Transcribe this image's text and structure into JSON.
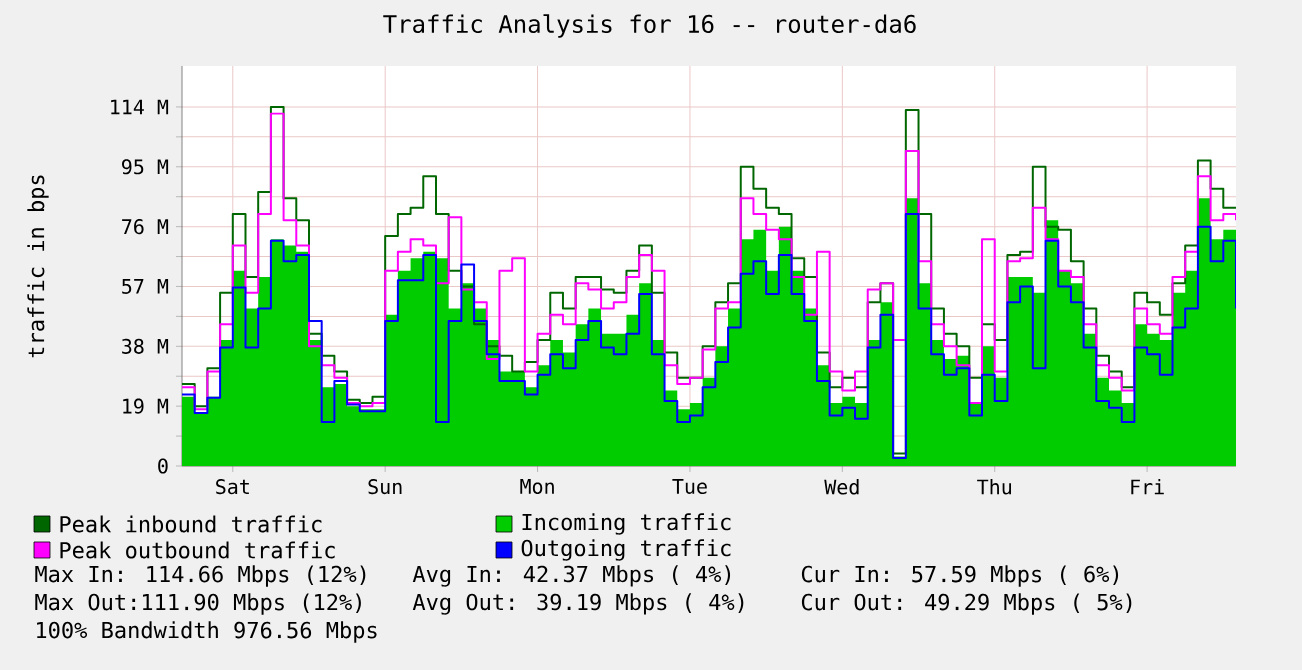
{
  "chart_data": {
    "type": "step",
    "title": "Traffic Analysis for 16 -- router-da6",
    "ylabel": "traffic in bps",
    "ylim": [
      0,
      127
    ],
    "categories": [
      null,
      null,
      null,
      null,
      "Sat",
      null,
      null,
      null,
      null,
      null,
      null,
      null,
      null,
      null,
      null,
      null,
      "Sun",
      null,
      null,
      null,
      null,
      null,
      null,
      null,
      null,
      null,
      null,
      null,
      "Mon",
      null,
      null,
      null,
      null,
      null,
      null,
      null,
      null,
      null,
      null,
      null,
      "Tue",
      null,
      null,
      null,
      null,
      null,
      null,
      null,
      null,
      null,
      null,
      null,
      "Wed",
      null,
      null,
      null,
      null,
      null,
      null,
      null,
      null,
      null,
      null,
      null,
      "Thu",
      null,
      null,
      null,
      null,
      null,
      null,
      null,
      null,
      null,
      null,
      null,
      "Fri",
      null,
      null,
      null,
      null,
      null,
      null,
      null
    ],
    "yticks": [
      {
        "value": 0,
        "label": "0"
      },
      {
        "value": 9.5,
        "label": null
      },
      {
        "value": 19,
        "label": "19 M"
      },
      {
        "value": 28.5,
        "label": null
      },
      {
        "value": 38,
        "label": "38 M"
      },
      {
        "value": 47.5,
        "label": null
      },
      {
        "value": 57,
        "label": "57 M"
      },
      {
        "value": 66.5,
        "label": null
      },
      {
        "value": 76,
        "label": "76 M"
      },
      {
        "value": 85.5,
        "label": null
      },
      {
        "value": 95,
        "label": "95 M"
      },
      {
        "value": 104.5,
        "label": null
      },
      {
        "value": 114,
        "label": "114 M"
      }
    ],
    "series": [
      {
        "name": "Peak inbound traffic",
        "color": "#006600",
        "values": [
          26,
          19,
          31,
          55,
          80,
          60,
          87,
          114,
          85,
          78,
          42,
          35,
          30,
          21,
          20,
          22,
          73,
          80,
          82,
          92,
          80,
          62,
          57,
          45,
          38,
          35,
          30,
          33,
          40,
          55,
          50,
          60,
          60,
          56,
          55,
          62,
          70,
          55,
          36,
          28,
          28,
          38,
          52,
          58,
          95,
          88,
          82,
          80,
          66,
          60,
          36,
          25,
          28,
          25,
          52,
          58,
          4,
          113,
          80,
          50,
          42,
          38,
          28,
          45,
          40,
          67,
          68,
          95,
          76,
          75,
          65,
          50,
          35,
          30,
          25,
          55,
          52,
          48,
          58,
          70,
          97,
          88,
          82,
          82
        ]
      },
      {
        "name": "Incoming traffic",
        "type": "area",
        "color": "#00cc00",
        "values": [
          22,
          17,
          22,
          40,
          62,
          50,
          60,
          72,
          70,
          68,
          40,
          25,
          26,
          19,
          18,
          18,
          48,
          62,
          66,
          68,
          66,
          50,
          58,
          50,
          40,
          30,
          30,
          25,
          32,
          40,
          36,
          45,
          50,
          42,
          42,
          48,
          58,
          40,
          24,
          18,
          20,
          28,
          38,
          50,
          72,
          75,
          62,
          76,
          62,
          50,
          32,
          20,
          22,
          20,
          40,
          52,
          3,
          85,
          58,
          40,
          34,
          35,
          20,
          38,
          28,
          60,
          60,
          55,
          78,
          62,
          58,
          42,
          28,
          24,
          20,
          45,
          42,
          40,
          55,
          62,
          85,
          72,
          75,
          76
        ]
      },
      {
        "name": "Peak outbound traffic",
        "color": "#ff00ff",
        "values": [
          25,
          18,
          30,
          45,
          70,
          55,
          80,
          111.9,
          78,
          70,
          38,
          32,
          28,
          20,
          19,
          20,
          62,
          68,
          72,
          70,
          58,
          79,
          56,
          52,
          34,
          62,
          66,
          30,
          42,
          48,
          45,
          58,
          56,
          50,
          52,
          60,
          67,
          62,
          32,
          26,
          28,
          37,
          50,
          52,
          85,
          80,
          75,
          72,
          60,
          48,
          68,
          30,
          24,
          30,
          56,
          58,
          40,
          100,
          65,
          45,
          38,
          32,
          20,
          72,
          30,
          65,
          66,
          82,
          72,
          62,
          60,
          45,
          32,
          28,
          24,
          50,
          45,
          42,
          60,
          68,
          92,
          78,
          80,
          78
        ]
      },
      {
        "name": "Outgoing traffic",
        "color": "#0000ff",
        "values": [
          22.7,
          16.8,
          21.7,
          37.6,
          56.7,
          37.6,
          50,
          71.5,
          65,
          67,
          46,
          14,
          27,
          19.5,
          17.4,
          17.4,
          46,
          59,
          59,
          67,
          14,
          46,
          64,
          46,
          35.5,
          27,
          27,
          22.7,
          29,
          35.5,
          31,
          40,
          46,
          37.6,
          35.5,
          42,
          54.6,
          35.5,
          20.6,
          14,
          16,
          25,
          33,
          44,
          61,
          65,
          54.6,
          67,
          54.6,
          46,
          27,
          16,
          18.5,
          15,
          37.6,
          48,
          2.5,
          80,
          50,
          35.5,
          29,
          31,
          16,
          29,
          20.6,
          52,
          57,
          31,
          71.5,
          57,
          52,
          37.6,
          20.6,
          18.5,
          14,
          37.6,
          35.5,
          29,
          44,
          50,
          76,
          65,
          71.5,
          50
        ]
      }
    ],
    "grid": true,
    "legend": "bottom",
    "annotations": [
      "Max In: 114.66 Mbps (12%)",
      "Avg In:  42.37 Mbps ( 4%)",
      "Cur In:  57.59 Mbps ( 6%)",
      "Max Out:111.90 Mbps (12%)",
      "Avg Out: 39.19 Mbps ( 4%)",
      "Cur Out: 49.29 Mbps ( 5%)",
      "100% Bandwidth 976.56 Mbps"
    ]
  }
}
